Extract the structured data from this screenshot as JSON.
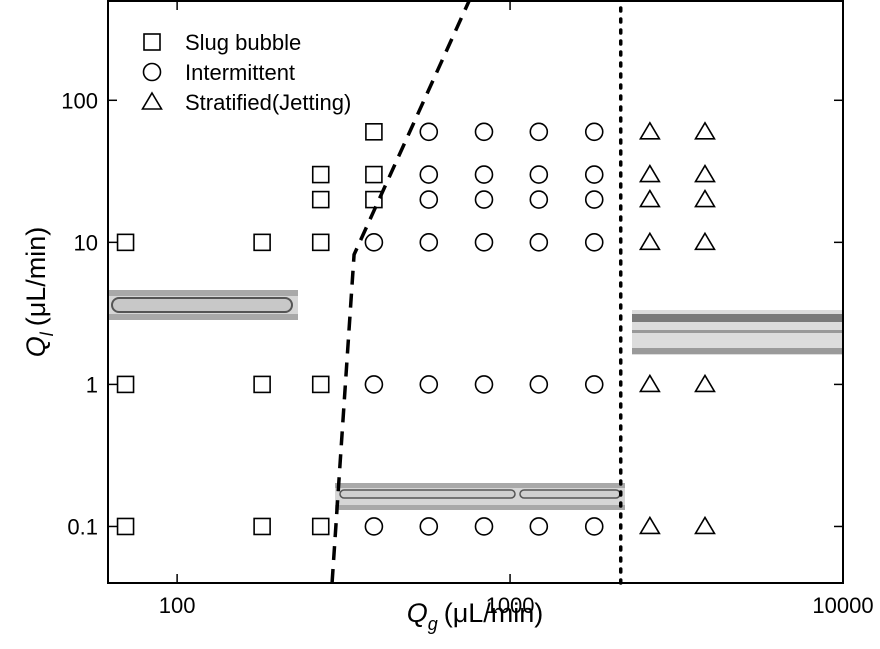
{
  "chart_data": {
    "type": "scatter",
    "xlabel": {
      "symbol": "Q",
      "subscript": "g",
      "unit": "(μL/min)"
    },
    "ylabel": {
      "symbol": "Q",
      "subscript": "l",
      "unit": "(μL/min)"
    },
    "log_x": true,
    "log_y": true,
    "xlim": [
      62,
      10000
    ],
    "ylim": [
      0.04,
      500
    ],
    "xticks": [
      100,
      1000,
      10000
    ],
    "yticks": [
      0.1,
      1,
      10,
      100
    ],
    "legend": "top-left",
    "series": [
      {
        "name": "Slug bubble",
        "marker": "square",
        "color": "#000000",
        "x": [
          70,
          70,
          70,
          180,
          180,
          180,
          270,
          270,
          270,
          270,
          270,
          390,
          390,
          390
        ],
        "values": [
          10,
          1,
          0.1,
          10,
          1,
          0.1,
          30,
          20,
          10,
          1,
          0.1,
          60,
          30,
          20
        ]
      },
      {
        "name": "Intermittent",
        "marker": "circle",
        "color": "#000000",
        "x": [
          390,
          390,
          390,
          570,
          570,
          570,
          570,
          570,
          570,
          835,
          835,
          835,
          835,
          835,
          835,
          1220,
          1220,
          1220,
          1220,
          1220,
          1220,
          1790,
          1790,
          1790,
          1790,
          1790,
          1790
        ],
        "values": [
          10,
          1,
          0.1,
          60,
          30,
          20,
          10,
          1,
          0.1,
          60,
          30,
          20,
          10,
          1,
          0.1,
          60,
          30,
          20,
          10,
          1,
          0.1,
          60,
          30,
          20,
          10,
          1,
          0.1
        ]
      },
      {
        "name": "Stratified(Jetting)",
        "marker": "triangle",
        "color": "#000000",
        "x": [
          2630,
          2630,
          2630,
          2630,
          2630,
          2630,
          3850,
          3850,
          3850,
          3850,
          3850,
          3850
        ],
        "values": [
          60,
          30,
          20,
          10,
          1,
          0.1,
          60,
          30,
          20,
          10,
          1,
          0.1
        ]
      }
    ],
    "boundaries": [
      {
        "style": "dashed",
        "x": [
          292,
          340,
          753
        ],
        "values": [
          0.04,
          8.2,
          500
        ]
      },
      {
        "style": "dotted",
        "x": [
          2150,
          2150
        ],
        "values": [
          0.04,
          500
        ]
      }
    ]
  }
}
